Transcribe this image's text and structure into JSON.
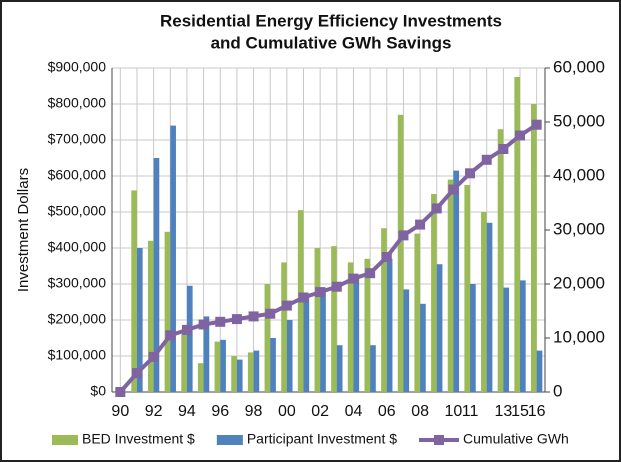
{
  "chart_data": {
    "type": "bar",
    "title": "Residential Energy Efficiency Investments",
    "subtitle": "and Cumulative GWh Savings",
    "y_label": "Investment Dollars",
    "categories": [
      "90",
      null,
      "92",
      null,
      "94",
      null,
      "96",
      null,
      "98",
      null,
      "00",
      null,
      "02",
      null,
      "04",
      null,
      "06",
      null,
      "08",
      null,
      "10",
      "11",
      null,
      "13",
      "15",
      "16"
    ],
    "series": [
      {
        "name": "BED Investment $",
        "color": "#9bbb59",
        "type": "bar",
        "values": [
          0,
          560000,
          420000,
          445000,
          160000,
          80000,
          140000,
          100000,
          110000,
          300000,
          360000,
          505000,
          400000,
          405000,
          360000,
          370000,
          455000,
          770000,
          440000,
          550000,
          590000,
          575000,
          500000,
          730000,
          875000,
          800000
        ]
      },
      {
        "name": "Participant Investment $",
        "color": "#4f81bd",
        "type": "bar",
        "values": [
          0,
          400000,
          650000,
          740000,
          295000,
          210000,
          145000,
          90000,
          115000,
          150000,
          200000,
          270000,
          290000,
          130000,
          320000,
          130000,
          370000,
          285000,
          245000,
          355000,
          615000,
          300000,
          470000,
          290000,
          310000,
          115000
        ]
      },
      {
        "name": "Cumulative GWh",
        "color": "#8064a2",
        "type": "line",
        "axis": "y2",
        "values": [
          0,
          3500,
          6500,
          10500,
          11500,
          12500,
          13000,
          13500,
          14000,
          14500,
          16000,
          17500,
          18500,
          19500,
          21000,
          22000,
          25000,
          29000,
          31000,
          34000,
          37500,
          40500,
          43000,
          45000,
          47500,
          49500
        ]
      }
    ],
    "ylim": [
      0,
      900000
    ],
    "yticks": [
      {
        "value": 0,
        "label": "$0"
      },
      {
        "value": 100000,
        "label": "$100,000"
      },
      {
        "value": 200000,
        "label": "$200,000"
      },
      {
        "value": 300000,
        "label": "$300,000"
      },
      {
        "value": 400000,
        "label": "$400,000"
      },
      {
        "value": 500000,
        "label": "$500,000"
      },
      {
        "value": 600000,
        "label": "$600,000"
      },
      {
        "value": 700000,
        "label": "$700,000"
      },
      {
        "value": 800000,
        "label": "$800,000"
      },
      {
        "value": 900000,
        "label": "$900,000"
      }
    ],
    "y2lim": [
      0,
      60000
    ],
    "y2ticks": [
      0,
      {
        "value": 10000,
        "label": "10,000"
      },
      {
        "value": 20000,
        "label": "20,000"
      },
      {
        "value": 30000,
        "label": "30,000"
      },
      {
        "value": 40000,
        "label": "40,000"
      },
      {
        "value": 50000,
        "label": "50,000"
      },
      {
        "value": 60000,
        "label": "60,000"
      }
    ],
    "grid": true,
    "legend": "bottom"
  }
}
